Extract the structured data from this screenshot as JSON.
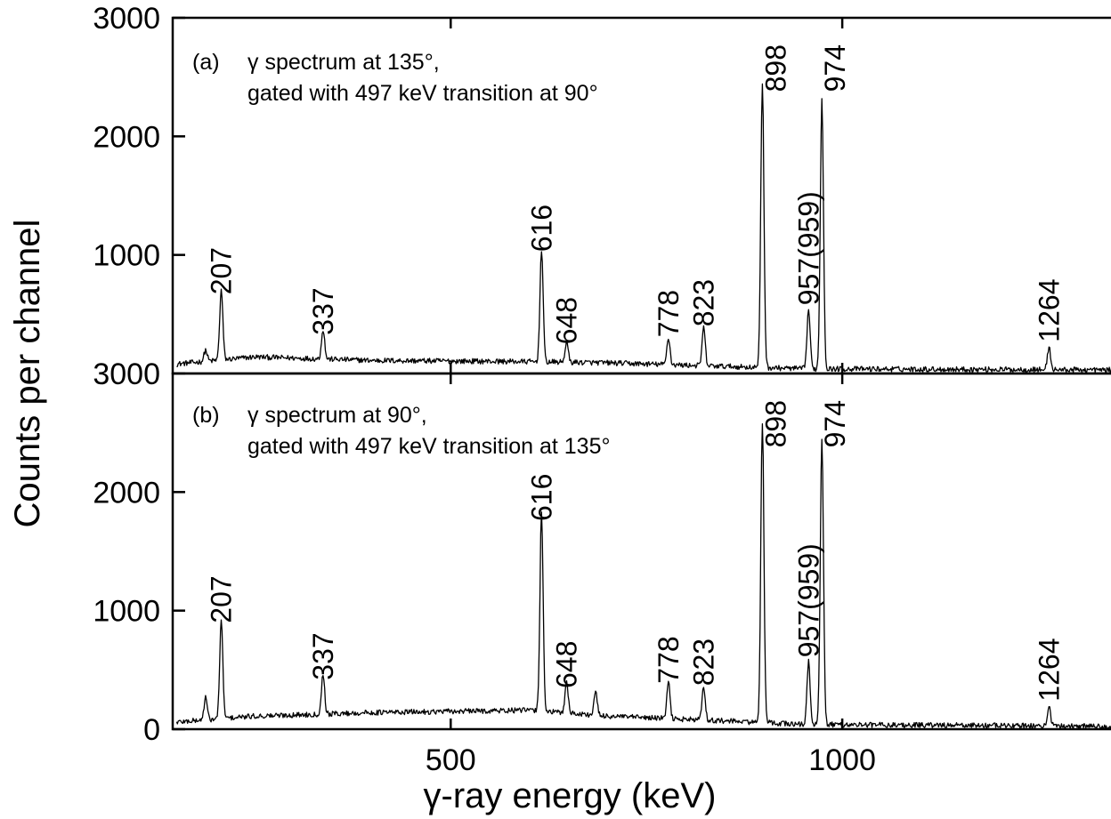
{
  "chart_data": [
    {
      "type": "line",
      "panel_label": "(a)",
      "caption_line1": "γ spectrum at 135°,",
      "caption_line2": "gated with 497 keV transition at 90°",
      "xlim": [
        145,
        1350
      ],
      "ylim": [
        0,
        3000
      ],
      "yticks": [
        "3000",
        "2000",
        "1000"
      ],
      "baseline": [
        [
          150,
          80
        ],
        [
          250,
          140
        ],
        [
          400,
          110
        ],
        [
          600,
          100
        ],
        [
          700,
          90
        ],
        [
          850,
          60
        ],
        [
          950,
          40
        ],
        [
          1350,
          30
        ]
      ],
      "peaks": [
        {
          "energy": 187,
          "height": 95,
          "label": ""
        },
        {
          "energy": 207,
          "height": 590,
          "label": "207"
        },
        {
          "energy": 337,
          "height": 250,
          "label": "337"
        },
        {
          "energy": 616,
          "height": 950,
          "label": "616"
        },
        {
          "energy": 648,
          "height": 170,
          "label": "648"
        },
        {
          "energy": 778,
          "height": 230,
          "label": "778"
        },
        {
          "energy": 823,
          "height": 320,
          "label": "823"
        },
        {
          "energy": 898,
          "height": 2400,
          "label": "898"
        },
        {
          "energy": 957,
          "height": 500,
          "label": "957(959)"
        },
        {
          "energy": 974,
          "height": 2280,
          "label": "974"
        },
        {
          "energy": 1264,
          "height": 190,
          "label": "1264"
        }
      ]
    },
    {
      "type": "line",
      "panel_label": "(b)",
      "caption_line1": "γ spectrum at 90°,",
      "caption_line2": "gated with 497 keV transition at 135°",
      "xlim": [
        145,
        1350
      ],
      "ylim": [
        0,
        3000
      ],
      "yticks": [
        "3000",
        "2000",
        "1000",
        "0"
      ],
      "baseline": [
        [
          150,
          60
        ],
        [
          250,
          110
        ],
        [
          400,
          140
        ],
        [
          600,
          160
        ],
        [
          700,
          110
        ],
        [
          850,
          70
        ],
        [
          950,
          40
        ],
        [
          1350,
          25
        ]
      ],
      "peaks": [
        {
          "energy": 187,
          "height": 190,
          "label": ""
        },
        {
          "energy": 207,
          "height": 820,
          "label": "207"
        },
        {
          "energy": 337,
          "height": 340,
          "label": "337"
        },
        {
          "energy": 616,
          "height": 1680,
          "label": "616"
        },
        {
          "energy": 648,
          "height": 270,
          "label": "648"
        },
        {
          "energy": 685,
          "height": 200,
          "label": ""
        },
        {
          "energy": 778,
          "height": 310,
          "label": "778"
        },
        {
          "energy": 823,
          "height": 290,
          "label": "823"
        },
        {
          "energy": 898,
          "height": 2520,
          "label": "898"
        },
        {
          "energy": 957,
          "height": 530,
          "label": "957(959)"
        },
        {
          "energy": 974,
          "height": 2420,
          "label": "974"
        },
        {
          "energy": 1264,
          "height": 160,
          "label": "1264"
        }
      ]
    }
  ],
  "x_axis": {
    "label": "γ-ray energy (keV)",
    "ticks": [
      500,
      1000
    ],
    "tick_labels": [
      "500",
      "1000"
    ]
  },
  "y_axis": {
    "label": "Counts per channel"
  }
}
